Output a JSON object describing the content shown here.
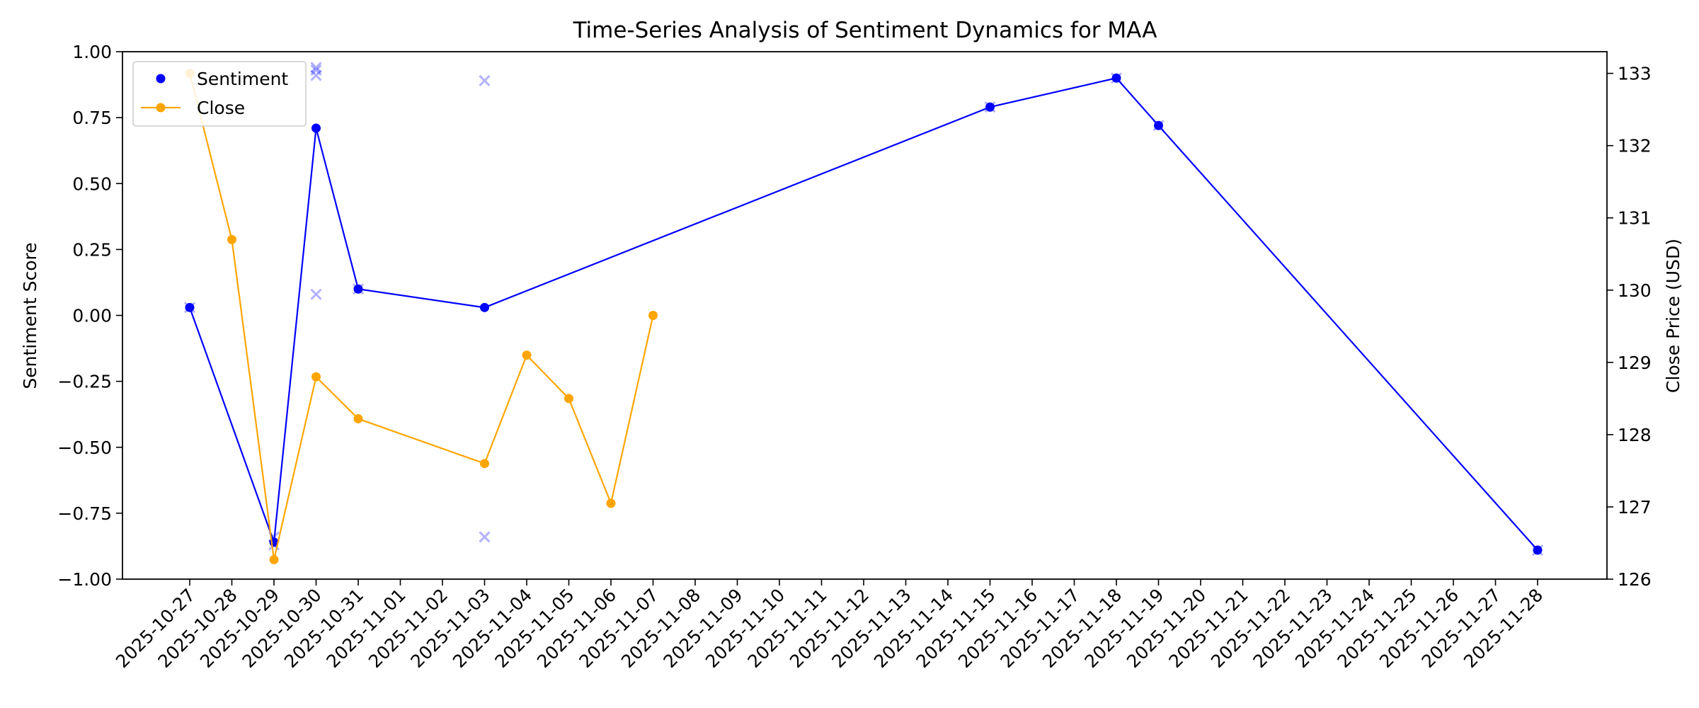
{
  "chart_data": {
    "type": "line",
    "title": "Time-Series Analysis of Sentiment Dynamics for MAA",
    "xlabel": "",
    "ylabel_left": "Sentiment Score",
    "ylabel_right": "Close Price (USD)",
    "ylim_left": [
      -1.0,
      1.0
    ],
    "ylim_right": [
      126.0,
      133.3
    ],
    "yticks_left": [
      "−1.00",
      "−0.75",
      "−0.50",
      "−0.25",
      "0.00",
      "0.25",
      "0.50",
      "0.75",
      "1.00"
    ],
    "yticks_left_values": [
      -1.0,
      -0.75,
      -0.5,
      -0.25,
      0.0,
      0.25,
      0.5,
      0.75,
      1.0
    ],
    "yticks_right": [
      "126",
      "127",
      "128",
      "129",
      "130",
      "131",
      "132",
      "133"
    ],
    "yticks_right_values": [
      126,
      127,
      128,
      129,
      130,
      131,
      132,
      133
    ],
    "categories": [
      "2025-10-27",
      "2025-10-28",
      "2025-10-29",
      "2025-10-30",
      "2025-10-31",
      "2025-11-01",
      "2025-11-02",
      "2025-11-03",
      "2025-11-04",
      "2025-11-05",
      "2025-11-06",
      "2025-11-07",
      "2025-11-08",
      "2025-11-09",
      "2025-11-10",
      "2025-11-11",
      "2025-11-12",
      "2025-11-13",
      "2025-11-14",
      "2025-11-15",
      "2025-11-16",
      "2025-11-17",
      "2025-11-18",
      "2025-11-19",
      "2025-11-20",
      "2025-11-21",
      "2025-11-22",
      "2025-11-23",
      "2025-11-24",
      "2025-11-25",
      "2025-11-26",
      "2025-11-27",
      "2025-11-28"
    ],
    "series": [
      {
        "name": "Sentiment",
        "axis": "left",
        "color": "#0000ff",
        "points": [
          {
            "x": "2025-10-27",
            "y": 0.03
          },
          {
            "x": "2025-10-29",
            "y": -0.86
          },
          {
            "x": "2025-10-30",
            "y": 0.71
          },
          {
            "x": "2025-10-31",
            "y": 0.1
          },
          {
            "x": "2025-11-03",
            "y": 0.03
          },
          {
            "x": "2025-11-15",
            "y": 0.79
          },
          {
            "x": "2025-11-18",
            "y": 0.9
          },
          {
            "x": "2025-11-19",
            "y": 0.72
          },
          {
            "x": "2025-11-28",
            "y": -0.89
          }
        ]
      },
      {
        "name": "Close",
        "axis": "right",
        "color": "#ffa500",
        "points": [
          {
            "x": "2025-10-27",
            "y": 133.0
          },
          {
            "x": "2025-10-28",
            "y": 130.7
          },
          {
            "x": "2025-10-29",
            "y": 126.27
          },
          {
            "x": "2025-10-30",
            "y": 128.8
          },
          {
            "x": "2025-10-31",
            "y": 128.22
          },
          {
            "x": "2025-11-03",
            "y": 127.6
          },
          {
            "x": "2025-11-04",
            "y": 129.1
          },
          {
            "x": "2025-11-05",
            "y": 128.5
          },
          {
            "x": "2025-11-06",
            "y": 127.05
          },
          {
            "x": "2025-11-07",
            "y": 129.65
          }
        ]
      }
    ],
    "individual_sentiment": {
      "color": "#0000ff",
      "points": [
        {
          "x": "2025-10-27",
          "y": 0.03
        },
        {
          "x": "2025-10-29",
          "y": -0.84
        },
        {
          "x": "2025-10-29",
          "y": -0.87
        },
        {
          "x": "2025-10-30",
          "y": 0.94
        },
        {
          "x": "2025-10-30",
          "y": 0.93
        },
        {
          "x": "2025-10-30",
          "y": 0.91
        },
        {
          "x": "2025-10-30",
          "y": 0.08
        },
        {
          "x": "2025-10-31",
          "y": 0.1
        },
        {
          "x": "2025-11-03",
          "y": 0.89
        },
        {
          "x": "2025-11-03",
          "y": -0.84
        },
        {
          "x": "2025-11-15",
          "y": 0.79
        },
        {
          "x": "2025-11-18",
          "y": 0.9
        },
        {
          "x": "2025-11-19",
          "y": 0.72
        },
        {
          "x": "2025-11-28",
          "y": -0.89
        }
      ]
    },
    "legend": {
      "position": "top-left",
      "entries": [
        "Sentiment",
        "Close"
      ]
    },
    "grid": false
  }
}
